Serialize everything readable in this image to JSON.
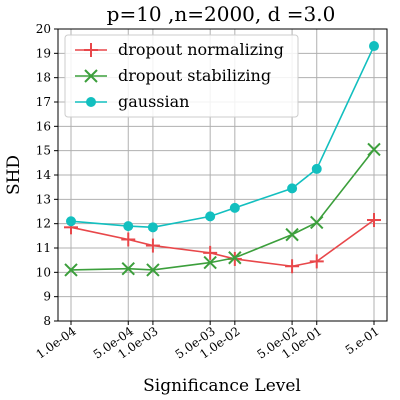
{
  "chart_data": {
    "type": "line",
    "title": "p=10 ,n=2000, d =3.0",
    "xlabel": "Significance Level",
    "ylabel": "SHD",
    "x_scale": "log",
    "x": [
      0.0001,
      0.0005,
      0.001,
      0.005,
      0.01,
      0.05,
      0.1,
      0.5
    ],
    "x_tick_labels": [
      "1.0e-04",
      "5.0e-04",
      "1.0e-03",
      "5.0e-03",
      "1.0e-02",
      "5.0e-02",
      "1.0e-01",
      "5.e-01"
    ],
    "ylim": [
      8,
      20
    ],
    "y_ticks": [
      8,
      9,
      10,
      11,
      12,
      13,
      14,
      15,
      16,
      17,
      18,
      19,
      20
    ],
    "grid": true,
    "legend_position": "top-left",
    "series": [
      {
        "name": "dropout normalizing",
        "color": "#e8474a",
        "marker": "plus",
        "values": [
          11.85,
          11.35,
          11.1,
          10.8,
          10.55,
          10.25,
          10.45,
          12.15
        ]
      },
      {
        "name": "dropout stabilizing",
        "color": "#3c9f3c",
        "marker": "x",
        "values": [
          10.1,
          10.15,
          10.1,
          10.4,
          10.6,
          11.55,
          12.05,
          15.05
        ]
      },
      {
        "name": "gaussian",
        "color": "#12bfbf",
        "marker": "circle",
        "values": [
          12.1,
          11.9,
          11.85,
          12.3,
          12.65,
          13.45,
          14.25,
          19.3
        ]
      }
    ]
  }
}
